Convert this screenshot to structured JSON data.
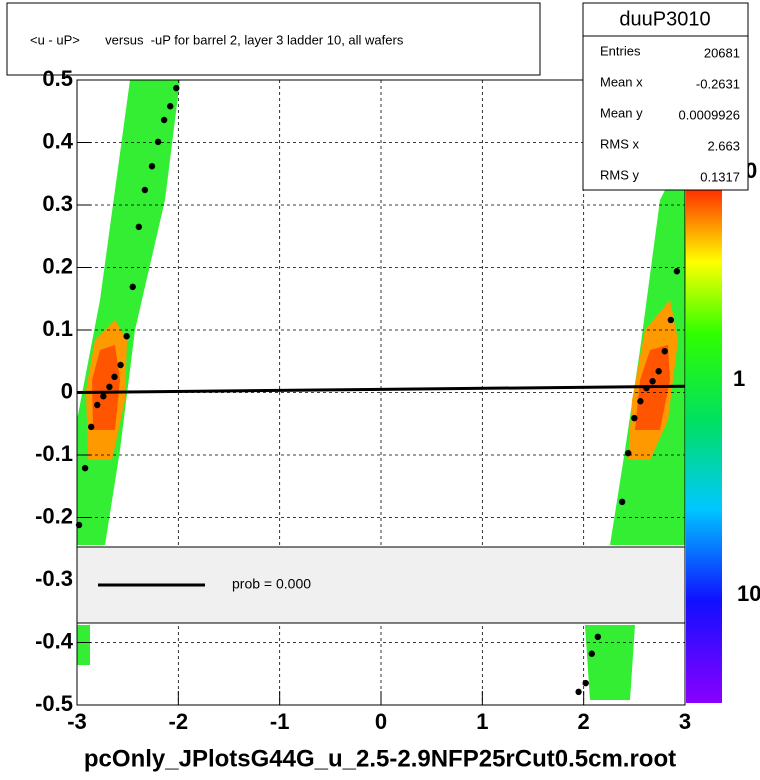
{
  "chart_data": {
    "type": "scatter",
    "title": "<u - uP>       versus  -uP for barrel 2, layer 3 ladder 10, all wafers",
    "footer": "pcOnly_JPlotsG44G_u_2.5-2.9NFP25rCut0.5cm.root",
    "stats": {
      "name": "duuP3010",
      "rows": [
        [
          "Entries",
          "20681"
        ],
        [
          "Mean x",
          "-0.2631"
        ],
        [
          "Mean y",
          "0.0009926"
        ],
        [
          "RMS x",
          "2.663"
        ],
        [
          "RMS y",
          "0.1317"
        ]
      ]
    },
    "legend_text": "prob = 0.000",
    "palette_labels": [
      "0",
      "1",
      "10"
    ],
    "xlim": [
      -3,
      3
    ],
    "ylim": [
      -0.5,
      0.5
    ],
    "xticks": [
      -3,
      -2,
      -1,
      0,
      1,
      2,
      3
    ],
    "yticks": [
      -0.5,
      -0.4,
      -0.3,
      -0.2,
      -0.1,
      0,
      0.1,
      0.2,
      0.3,
      0.4,
      0.5
    ],
    "grid": true,
    "series": [
      {
        "color": "#000000",
        "x": [
          -2.98,
          -2.92,
          -2.86,
          -2.8,
          -2.74,
          -2.68,
          -2.63,
          -2.57,
          -2.51,
          -2.45,
          -2.39,
          -2.33,
          -2.26,
          -2.2,
          -2.14,
          -2.08,
          -2.02,
          1.95,
          2.02,
          2.08,
          2.14,
          2.38,
          2.44,
          2.5,
          2.56,
          2.62,
          2.68,
          2.74,
          2.8,
          2.86,
          2.92
        ],
        "values": [
          -0.212,
          -0.121,
          -0.055,
          -0.02,
          -0.006,
          0.009,
          0.025,
          0.044,
          0.09,
          0.169,
          0.265,
          0.324,
          0.362,
          0.401,
          0.436,
          0.458,
          0.487,
          -0.479,
          -0.465,
          -0.418,
          -0.391,
          -0.175,
          -0.097,
          -0.041,
          -0.014,
          0.007,
          0.018,
          0.034,
          0.066,
          0.116,
          0.194
        ]
      }
    ],
    "fit": {
      "color": "#000000",
      "x": [
        -3,
        3
      ],
      "values": [
        0.0,
        0.01
      ]
    }
  }
}
